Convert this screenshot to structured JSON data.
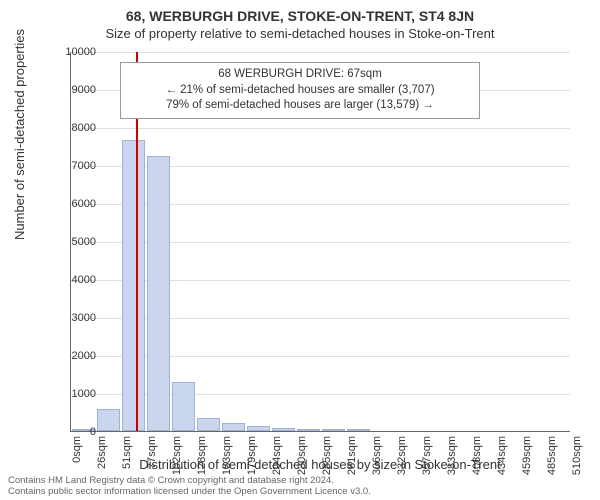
{
  "title": "68, WERBURGH DRIVE, STOKE-ON-TRENT, ST4 8JN",
  "subtitle": "Size of property relative to semi-detached houses in Stoke-on-Trent",
  "yaxis_label": "Number of semi-detached properties",
  "xaxis_label": "Distribution of semi-detached houses by size in Stoke-on-Trent",
  "chart": {
    "type": "histogram",
    "ylim": [
      0,
      10000
    ],
    "ytick_step": 1000,
    "yticks": [
      0,
      1000,
      2000,
      3000,
      4000,
      5000,
      6000,
      7000,
      8000,
      9000,
      10000
    ],
    "xticks": [
      "0sqm",
      "26sqm",
      "51sqm",
      "77sqm",
      "102sqm",
      "128sqm",
      "153sqm",
      "179sqm",
      "204sqm",
      "230sqm",
      "255sqm",
      "281sqm",
      "306sqm",
      "332sqm",
      "357sqm",
      "383sqm",
      "408sqm",
      "434sqm",
      "459sqm",
      "485sqm",
      "510sqm"
    ],
    "bar_color": "#c9d6ee",
    "bar_border": "#9fb3d9",
    "grid_color": "#e0e0e0",
    "marker_color": "#cc0000",
    "marker_x_index": 2.6,
    "bars": [
      {
        "x_index": 0,
        "value": 0
      },
      {
        "x_index": 1,
        "value": 580
      },
      {
        "x_index": 2,
        "value": 7650
      },
      {
        "x_index": 3,
        "value": 7250
      },
      {
        "x_index": 4,
        "value": 1300
      },
      {
        "x_index": 5,
        "value": 350
      },
      {
        "x_index": 6,
        "value": 200
      },
      {
        "x_index": 7,
        "value": 120
      },
      {
        "x_index": 8,
        "value": 80
      },
      {
        "x_index": 9,
        "value": 40
      },
      {
        "x_index": 10,
        "value": 30
      },
      {
        "x_index": 11,
        "value": 20
      }
    ]
  },
  "info_box": {
    "line1": "68 WERBURGH DRIVE: 67sqm",
    "line2": "← 21% of semi-detached houses are smaller (3,707)",
    "line3": "79% of semi-detached houses are larger (13,579) →"
  },
  "footer": {
    "line1": "Contains HM Land Registry data © Crown copyright and database right 2024.",
    "line2": "Contains public sector information licensed under the Open Government Licence v3.0."
  }
}
